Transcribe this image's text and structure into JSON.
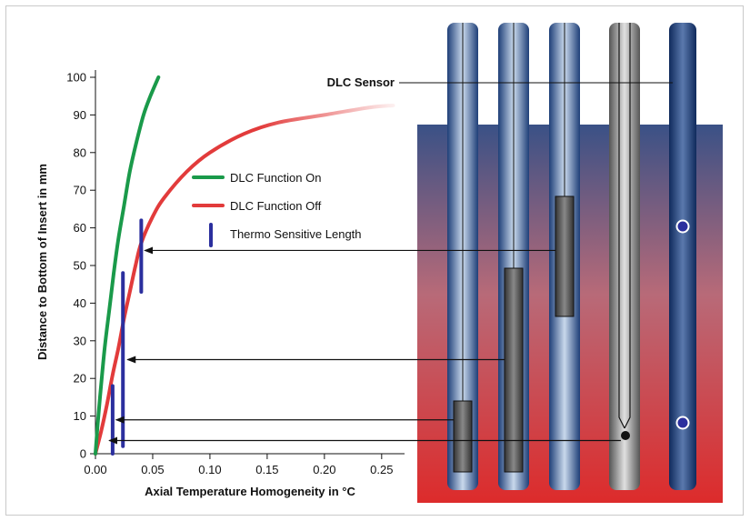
{
  "chart_data": {
    "type": "line",
    "xlabel": "Axial Temperature Homogeneity in °C",
    "ylabel": "Distance to Bottom of Insert in mm",
    "xlim": [
      0,
      0.27
    ],
    "ylim": [
      0,
      100
    ],
    "x_ticks": [
      "0.00",
      "0.05",
      "0.10",
      "0.15",
      "0.20",
      "0.25"
    ],
    "y_ticks": [
      "0",
      "10",
      "20",
      "30",
      "40",
      "50",
      "60",
      "70",
      "80",
      "90",
      "100"
    ],
    "grid": false,
    "legend_position": "center",
    "series": [
      {
        "name": "DLC Function On",
        "color": "#1a9a4a",
        "points": [
          [
            0,
            0
          ],
          [
            0.002,
            8
          ],
          [
            0.004,
            15
          ],
          [
            0.008,
            28
          ],
          [
            0.012,
            38
          ],
          [
            0.016,
            48
          ],
          [
            0.02,
            57
          ],
          [
            0.025,
            66
          ],
          [
            0.03,
            75
          ],
          [
            0.036,
            83
          ],
          [
            0.042,
            90
          ],
          [
            0.048,
            95
          ],
          [
            0.055,
            100
          ]
        ]
      },
      {
        "name": "DLC Function Off",
        "color": "#e23b3b",
        "points": [
          [
            0,
            0
          ],
          [
            0.005,
            6
          ],
          [
            0.01,
            13
          ],
          [
            0.015,
            21
          ],
          [
            0.02,
            28
          ],
          [
            0.025,
            36
          ],
          [
            0.03,
            43
          ],
          [
            0.035,
            50
          ],
          [
            0.04,
            56
          ],
          [
            0.05,
            63
          ],
          [
            0.06,
            68
          ],
          [
            0.08,
            75
          ],
          [
            0.1,
            80
          ],
          [
            0.13,
            85
          ],
          [
            0.16,
            88
          ],
          [
            0.2,
            90
          ],
          [
            0.24,
            92
          ],
          [
            0.26,
            92.5
          ]
        ]
      },
      {
        "name": "Thermo Sensitive Length",
        "color": "#2b2f9e",
        "segments": [
          {
            "x": 0.015,
            "y": [
              0,
              18
            ]
          },
          {
            "x": 0.024,
            "y": [
              2,
              48
            ]
          },
          {
            "x": 0.04,
            "y": [
              43,
              62
            ]
          }
        ]
      }
    ],
    "annotations": [
      {
        "label": "DLC Sensor"
      }
    ],
    "arrow_targets_y": [
      54,
      25,
      9,
      3.5
    ]
  },
  "diagram": {
    "colors": {
      "block_top": "#3a5186",
      "block_mid": "#b86a78",
      "block_bottom": "#dd2b2b",
      "tube": "#c9d9ec",
      "sensor_body": "#555555",
      "marker": "#2b2f9e"
    }
  }
}
